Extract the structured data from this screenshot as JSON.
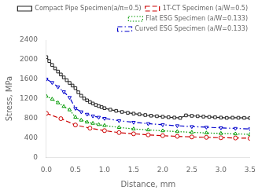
{
  "chart_data": {
    "type": "line",
    "xlabel": "Distance, mm",
    "ylabel": "Stress, MPa",
    "xlim": [
      0,
      3.5
    ],
    "ylim": [
      0,
      2400
    ],
    "xticks": [
      {
        "value": 0,
        "label": "0.0"
      },
      0.5,
      {
        "value": 1,
        "label": "1.0"
      },
      1.5,
      {
        "value": 2,
        "label": "2.0"
      },
      2.5,
      {
        "value": 3,
        "label": "3.0"
      },
      3.5
    ],
    "yticks": [
      0,
      400,
      800,
      1200,
      1600,
      2000,
      2400
    ],
    "grid": false,
    "legend": "upper right",
    "series": [
      {
        "name": "Compact Pipe Specimen(a/π=0.5)",
        "color": "#222222",
        "line_style": "solid",
        "marker": "square",
        "x": [
          0.0,
          0.05,
          0.1,
          0.15,
          0.2,
          0.25,
          0.3,
          0.35,
          0.4,
          0.45,
          0.5,
          0.55,
          0.6,
          0.65,
          0.7,
          0.75,
          0.8,
          0.85,
          0.9,
          0.95,
          1.0,
          1.1,
          1.2,
          1.3,
          1.4,
          1.5,
          1.6,
          1.7,
          1.8,
          1.9,
          2.0,
          2.1,
          2.2,
          2.3,
          2.4,
          2.5,
          2.6,
          2.7,
          2.8,
          2.9,
          3.0,
          3.1,
          3.2,
          3.3,
          3.4,
          3.5
        ],
        "values": [
          2050,
          1970,
          1890,
          1820,
          1755,
          1695,
          1635,
          1578,
          1522,
          1468,
          1415,
          1330,
          1260,
          1205,
          1165,
          1130,
          1100,
          1072,
          1048,
          1026,
          1005,
          975,
          950,
          928,
          910,
          893,
          878,
          864,
          851,
          840,
          830,
          820,
          812,
          804,
          857,
          848,
          840,
          832,
          825,
          818,
          812,
          806,
          810,
          808,
          806,
          802
        ]
      },
      {
        "name": "1T-CT Specimen (a/W=0.5)",
        "color": "#cc0000",
        "line_style": "dashed",
        "marker": "circle",
        "x": [
          0.0,
          0.25,
          0.5,
          0.75,
          1.0,
          1.25,
          1.5,
          1.75,
          2.0,
          2.25,
          2.5,
          2.75,
          3.0,
          3.25,
          3.5
        ],
        "values": [
          900,
          790,
          660,
          595,
          545,
          505,
          480,
          458,
          442,
          428,
          416,
          408,
          400,
          395,
          388
        ]
      },
      {
        "name": "Flat ESG Specimen (a/W=0.133)",
        "color": "#009900",
        "line_style": "dotted",
        "marker": "triangle-up",
        "x": [
          0.0,
          0.1,
          0.2,
          0.3,
          0.4,
          0.5,
          0.6,
          0.7,
          0.8,
          0.9,
          1.0,
          1.25,
          1.5,
          1.75,
          2.0,
          2.25,
          2.5,
          2.75,
          3.0,
          3.25,
          3.5
        ],
        "values": [
          1250,
          1190,
          1115,
          1040,
          970,
          820,
          760,
          720,
          695,
          670,
          650,
          610,
          580,
          560,
          542,
          525,
          510,
          498,
          488,
          478,
          468
        ]
      },
      {
        "name": "Curved ESG Specimen (a/W=0.133)",
        "color": "#0000cc",
        "line_style": "dashdot",
        "marker": "triangle-down",
        "x": [
          0.0,
          0.1,
          0.2,
          0.3,
          0.4,
          0.5,
          0.6,
          0.7,
          0.8,
          0.9,
          1.0,
          1.25,
          1.5,
          1.75,
          2.0,
          2.25,
          2.5,
          2.75,
          3.0,
          3.25,
          3.5
        ],
        "values": [
          1600,
          1530,
          1440,
          1340,
          1225,
          1000,
          930,
          880,
          845,
          818,
          795,
          748,
          715,
          688,
          665,
          645,
          628,
          615,
          602,
          590,
          580
        ]
      }
    ]
  }
}
